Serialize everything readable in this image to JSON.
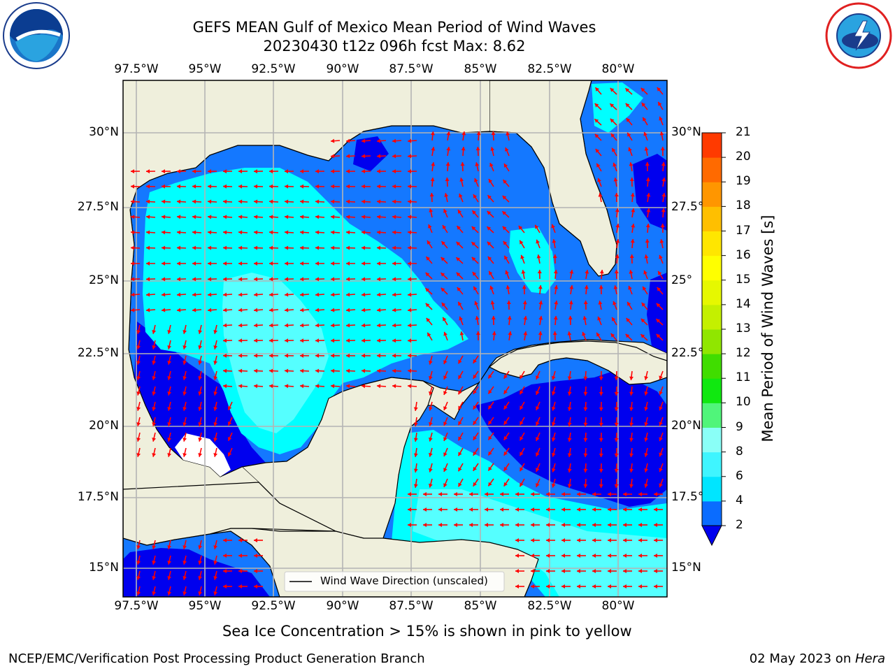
{
  "title_line1": "GEFS MEAN Gulf of Mexico Mean Period of Wind Waves",
  "title_line2": "20230430 t12z 096h fcst   Max: 8.62",
  "lon_labels": [
    "97.5°W",
    "95°W",
    "92.5°W",
    "90°W",
    "87.5°W",
    "85°W",
    "82.5°W",
    "80°W"
  ],
  "lat_labels_left": [
    "30°N",
    "27.5°N",
    "25°N",
    "22.5°N",
    "20°N",
    "17.5°N",
    "15°N"
  ],
  "lat_labels_right": [
    "30°N",
    "27.5°",
    "25°",
    "22.5°",
    "20°N",
    "17.5°",
    "15°N"
  ],
  "colorbar": {
    "title": "Mean Period of Wind Waves [s]",
    "ticks": [
      "2",
      "4",
      "6",
      "8",
      "9",
      "10",
      "11",
      "12",
      "13",
      "14",
      "15",
      "16",
      "17",
      "18",
      "19",
      "20",
      "21"
    ],
    "colors": [
      "#0a6cff",
      "#00e5ff",
      "#3ff5ff",
      "#8afff7",
      "#50f57a",
      "#10e810",
      "#40dd00",
      "#90e600",
      "#c4f000",
      "#e6f800",
      "#ffff00",
      "#ffe600",
      "#ffbf00",
      "#ff9600",
      "#ff6a00",
      "#ff3a00",
      "#ff0000"
    ]
  },
  "legend": "Wind Wave Direction (unscaled)",
  "sea_ice_note": "Sea Ice Concentration > 15% is shown in pink to yellow",
  "footer_left": "NCEP/EMC/Verification Post Processing Product Generation Branch",
  "footer_right_date": "02 May 2023 on ",
  "footer_right_host": "Hera",
  "logos": {
    "left": "noaa-logo",
    "right": "nws-logo"
  },
  "colors": {
    "land": "#efefdc",
    "dark_blue": "#0000ee",
    "mid_blue": "#1478ff",
    "cyan": "#00ffff",
    "light_cyan": "#55ffff",
    "arrow": "#ff0000"
  }
}
